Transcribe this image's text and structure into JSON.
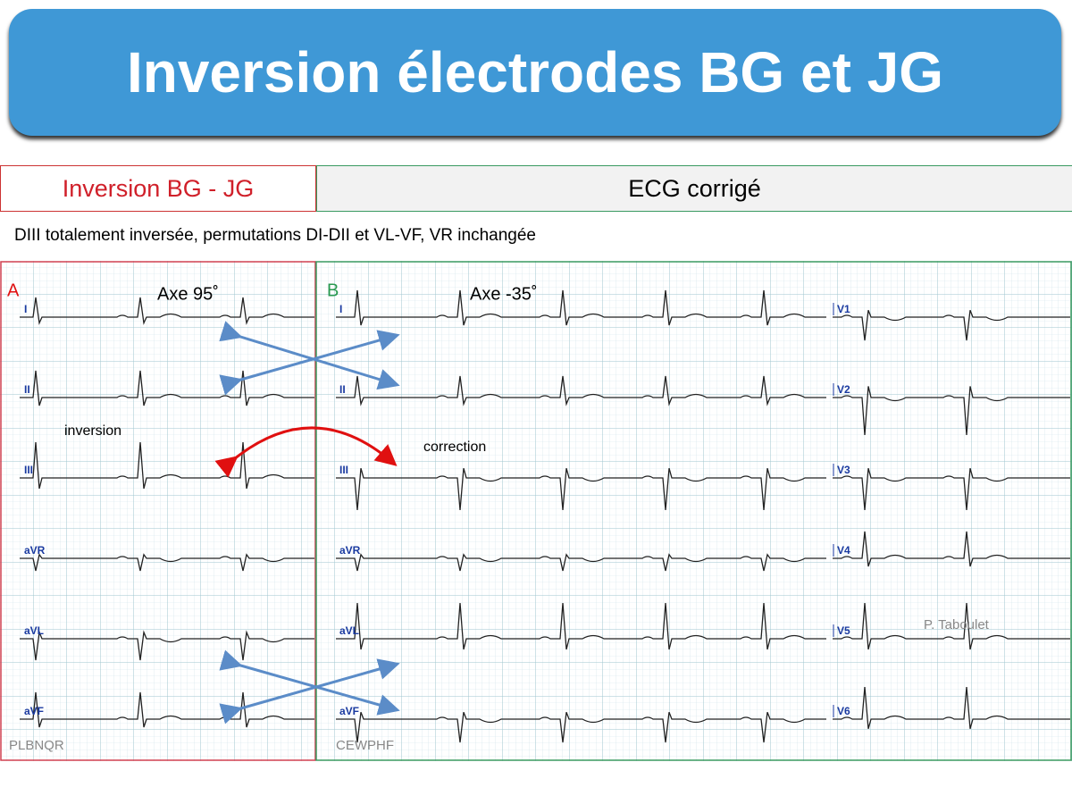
{
  "header": {
    "title": "Inversion électrodes BG et JG"
  },
  "tabs": {
    "left": "Inversion BG - JG",
    "right": "ECG corrigé"
  },
  "subtitle": "DIII totalement inversée, permutations DI-DII et VL-VF, VR inchangée",
  "panel_a": {
    "label": "A",
    "axis": "Axe 95˚",
    "leads": [
      "I",
      "II",
      "III",
      "aVR",
      "aVL",
      "aVF"
    ],
    "note": "inversion",
    "code": "PLBNQR"
  },
  "panel_b": {
    "label": "B",
    "axis": "Axe -35˚",
    "leads": [
      "I",
      "II",
      "III",
      "aVR",
      "aVL",
      "aVF"
    ],
    "precordial": [
      "V1",
      "V2",
      "V3",
      "V4",
      "V5",
      "V6"
    ],
    "note": "correction",
    "code": "CEWPHF",
    "author": "P. Taboulet"
  }
}
